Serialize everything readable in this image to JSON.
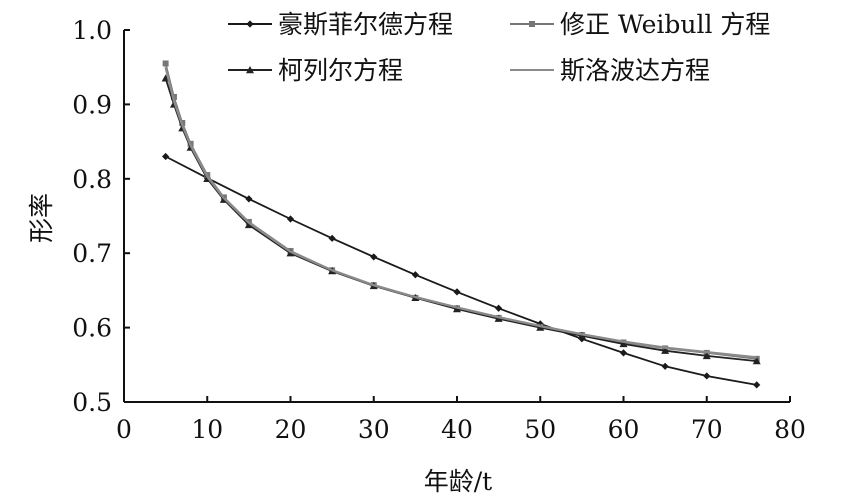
{
  "chart_data": {
    "type": "line",
    "title": "",
    "xlabel": "年龄/t",
    "ylabel": "形率",
    "xlim": [
      0,
      80
    ],
    "ylim": [
      0.5,
      1.0
    ],
    "xticks": [
      0,
      10,
      20,
      30,
      40,
      50,
      60,
      70,
      80
    ],
    "yticks": [
      0.5,
      0.6,
      0.7,
      0.8,
      0.9,
      1.0
    ],
    "xtick_labels": [
      "0",
      "10",
      "20",
      "30",
      "40",
      "50",
      "60",
      "70",
      "80"
    ],
    "ytick_labels": [
      "0.5",
      "0.6",
      "0.7",
      "0.8",
      "0.9",
      "1.0"
    ],
    "grid": false,
    "legend_position": "top",
    "series": [
      {
        "name": "豪斯菲尔德方程",
        "marker": "diamond",
        "color": "#1a1a1a",
        "x": [
          5,
          10,
          15,
          20,
          25,
          30,
          35,
          40,
          45,
          50,
          55,
          60,
          65,
          70,
          76
        ],
        "y": [
          0.83,
          0.801,
          0.773,
          0.746,
          0.72,
          0.695,
          0.671,
          0.648,
          0.626,
          0.605,
          0.585,
          0.566,
          0.548,
          0.535,
          0.523
        ]
      },
      {
        "name": "修正 Weibull 方程",
        "marker": "square",
        "color": "#777777",
        "x": [
          5,
          6,
          7,
          8,
          10,
          12,
          15,
          20,
          25,
          30,
          35,
          40,
          45,
          50,
          55,
          60,
          65,
          70,
          76
        ],
        "y": [
          0.955,
          0.91,
          0.875,
          0.847,
          0.805,
          0.775,
          0.742,
          0.703,
          0.677,
          0.657,
          0.64,
          0.626,
          0.613,
          0.601,
          0.59,
          0.58,
          0.572,
          0.566,
          0.558
        ]
      },
      {
        "name": "柯列尔方程",
        "marker": "triangle",
        "color": "#222222",
        "x": [
          5,
          6,
          7,
          8,
          10,
          12,
          15,
          20,
          25,
          30,
          35,
          40,
          45,
          50,
          55,
          60,
          65,
          70,
          76
        ],
        "y": [
          0.935,
          0.9,
          0.868,
          0.842,
          0.8,
          0.772,
          0.738,
          0.7,
          0.676,
          0.656,
          0.64,
          0.625,
          0.612,
          0.6,
          0.589,
          0.578,
          0.569,
          0.562,
          0.555
        ]
      },
      {
        "name": "斯洛波达方程",
        "marker": "none",
        "color": "#8a8a8a",
        "x": [
          5,
          6,
          7,
          8,
          10,
          12,
          15,
          20,
          25,
          30,
          35,
          40,
          45,
          50,
          55,
          60,
          65,
          70,
          76
        ],
        "y": [
          0.95,
          0.905,
          0.872,
          0.845,
          0.803,
          0.774,
          0.741,
          0.702,
          0.677,
          0.657,
          0.641,
          0.627,
          0.614,
          0.602,
          0.591,
          0.581,
          0.573,
          0.567,
          0.56
        ]
      }
    ]
  }
}
